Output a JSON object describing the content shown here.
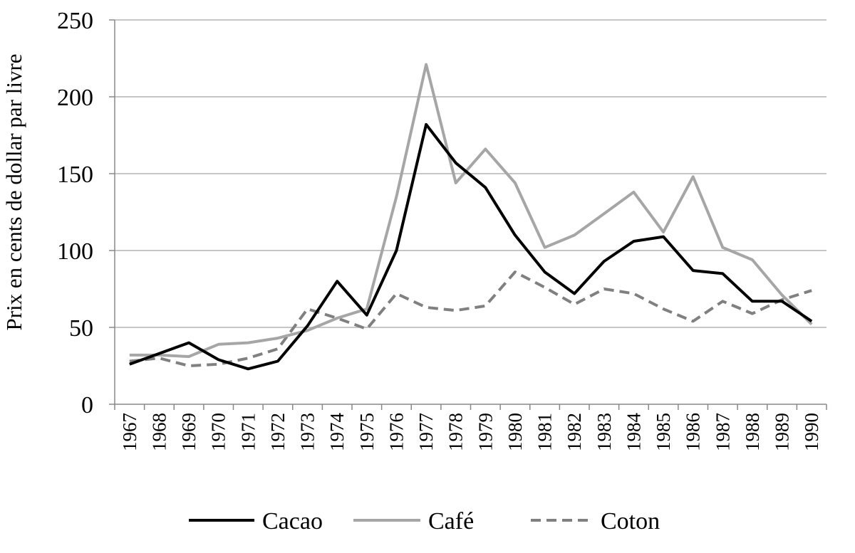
{
  "chart_data": {
    "type": "line",
    "title": "",
    "xlabel": "",
    "ylabel": "Prix en cents de dollar par livre",
    "ylim": [
      0,
      250
    ],
    "yticks": [
      "0",
      "50",
      "100",
      "150",
      "200",
      "250"
    ],
    "grid": "horizontal",
    "legend_position": "bottom",
    "categories": [
      "1967",
      "1968",
      "1969",
      "1970",
      "1971",
      "1972",
      "1973",
      "1974",
      "1975",
      "1976",
      "1977",
      "1978",
      "1979",
      "1980",
      "1981",
      "1982",
      "1983",
      "1984",
      "1985",
      "1986",
      "1987",
      "1988",
      "1989",
      "1990"
    ],
    "series": [
      {
        "name": "Cacao",
        "color": "#000000",
        "style": "solid",
        "values": [
          26,
          33,
          40,
          29,
          23,
          28,
          51,
          80,
          58,
          100,
          182,
          157,
          141,
          110,
          86,
          72,
          93,
          106,
          109,
          87,
          85,
          67,
          67,
          54
        ]
      },
      {
        "name": "Café",
        "color": "#a6a6a6",
        "style": "solid",
        "values": [
          32,
          32,
          31,
          39,
          40,
          43,
          48,
          56,
          62,
          135,
          221,
          144,
          166,
          144,
          102,
          110,
          124,
          138,
          112,
          148,
          102,
          94,
          71,
          52
        ]
      },
      {
        "name": "Coton",
        "color": "#808080",
        "style": "dashed",
        "values": [
          28,
          30,
          25,
          26,
          30,
          36,
          62,
          56,
          49,
          72,
          63,
          61,
          64,
          86,
          76,
          65,
          75,
          72,
          62,
          54,
          67,
          59,
          68,
          74
        ]
      }
    ]
  }
}
